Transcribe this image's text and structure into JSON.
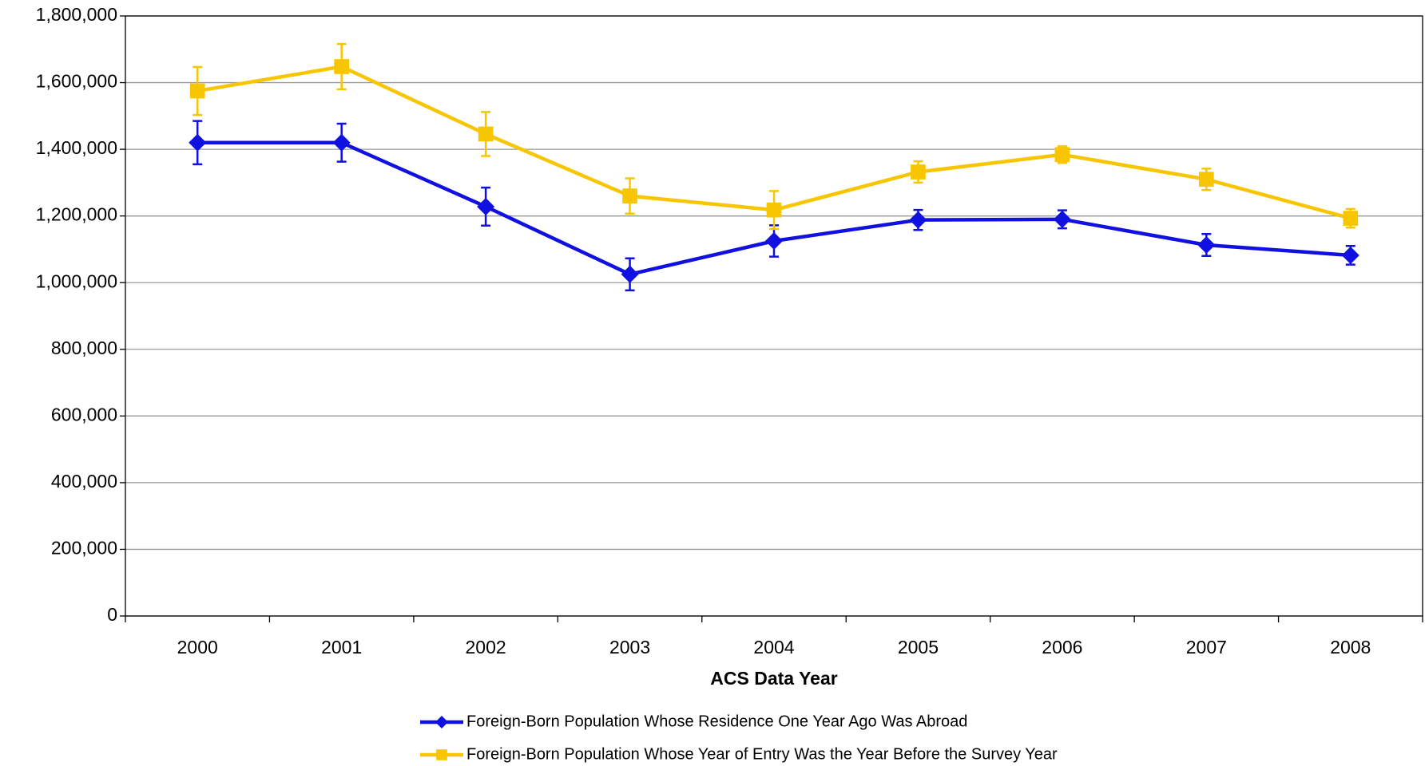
{
  "chart_data": {
    "type": "line",
    "x_label": "ACS Data Year",
    "categories": [
      "2000",
      "2001",
      "2002",
      "2003",
      "2004",
      "2005",
      "2006",
      "2007",
      "2008"
    ],
    "series": [
      {
        "name": "Foreign-Born Population Whose Residence One Year Ago Was Abroad",
        "color": "#1010e0",
        "marker": "diamond",
        "values": [
          1420000,
          1420000,
          1228000,
          1025000,
          1125000,
          1188000,
          1190000,
          1113000,
          1082000
        ],
        "errors": [
          65000,
          57000,
          57000,
          48000,
          47000,
          30000,
          27000,
          33000,
          28000
        ]
      },
      {
        "name": "Foreign-Born Population Whose Year of Entry Was the Year Before the Survey Year",
        "color": "#f7c600",
        "marker": "square",
        "values": [
          1575000,
          1648000,
          1446000,
          1260000,
          1218000,
          1332000,
          1384000,
          1310000,
          1193000
        ],
        "errors": [
          72000,
          68000,
          66000,
          53000,
          57000,
          32000,
          25000,
          32000,
          28000
        ]
      }
    ],
    "ylim": [
      0,
      1800000
    ],
    "yticks": [
      0,
      {
        "value": 200000,
        "label": "200,000"
      },
      {
        "value": 400000,
        "label": "400,000"
      },
      {
        "value": 600000,
        "label": "600,000"
      },
      {
        "value": 800000,
        "label": "800,000"
      },
      {
        "value": 1000000,
        "label": "1,000,000"
      },
      {
        "value": 1200000,
        "label": "1,200,000"
      },
      {
        "value": 1400000,
        "label": "1,400,000"
      },
      {
        "value": 1600000,
        "label": "1,600,000"
      },
      {
        "value": 1800000,
        "label": "1,800,000"
      }
    ],
    "grid": true
  }
}
